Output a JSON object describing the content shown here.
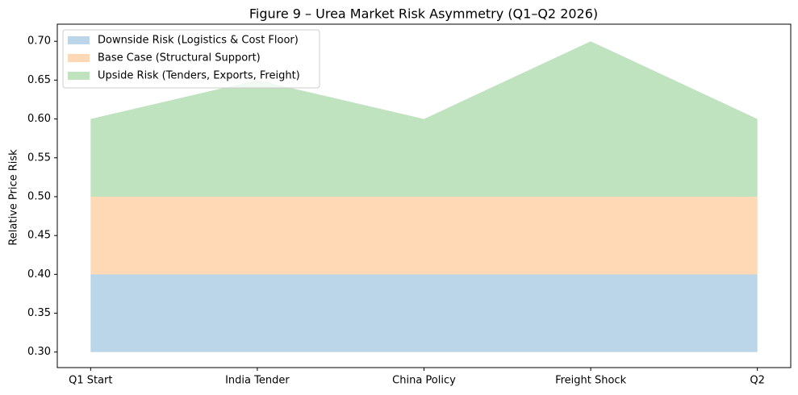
{
  "chart_data": {
    "type": "band-area",
    "title": "Figure  9  – Urea Market Risk Asymmetry (Q1–Q2 2026)",
    "y_label": "Relative Price Risk",
    "categories": [
      "Q1 Start",
      "India Tender",
      "China Policy",
      "Freight Shock",
      "Q2"
    ],
    "series": [
      {
        "name": "Downside Risk (Logistics & Cost Floor)",
        "color": "#1f77b4",
        "lower": [
          0.3,
          0.3,
          0.3,
          0.3,
          0.3
        ],
        "upper": [
          0.4,
          0.4,
          0.4,
          0.4,
          0.4
        ]
      },
      {
        "name": "Base Case (Structural Support)",
        "color": "#ff7f0e",
        "lower": [
          0.4,
          0.4,
          0.4,
          0.4,
          0.4
        ],
        "upper": [
          0.5,
          0.5,
          0.5,
          0.5,
          0.5
        ]
      },
      {
        "name": "Upside Risk (Tenders, Exports, Freight)",
        "color": "#2ca02c",
        "lower": [
          0.5,
          0.5,
          0.5,
          0.5,
          0.5
        ],
        "upper": [
          0.6,
          0.65,
          0.6,
          0.7,
          0.6
        ]
      }
    ],
    "opacity": 0.3,
    "ylim": [
      0.28,
      0.722
    ],
    "yticks": [
      {
        "value": 0.3,
        "label": "0.30"
      },
      {
        "value": 0.35,
        "label": "0.35"
      },
      {
        "value": 0.4,
        "label": "0.40"
      },
      {
        "value": 0.45,
        "label": "0.45"
      },
      {
        "value": 0.5,
        "label": "0.50"
      },
      {
        "value": 0.55,
        "label": "0.55"
      },
      {
        "value": 0.6,
        "label": "0.60"
      },
      {
        "value": 0.65,
        "label": "0.65"
      },
      {
        "value": 0.7,
        "label": "0.70"
      }
    ],
    "legend": "upper-left",
    "grid": false
  }
}
